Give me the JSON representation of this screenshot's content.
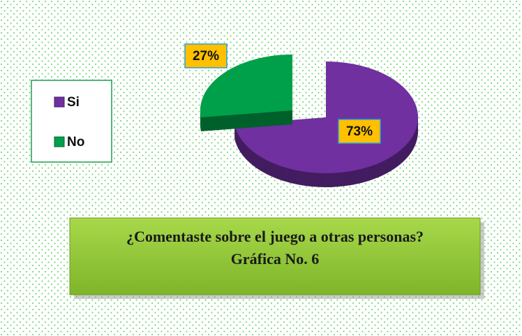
{
  "chart_data": {
    "type": "pie",
    "title": "¿Comentaste sobre el juego a otras personas?",
    "subtitle": "Gráfica No. 6",
    "categories": [
      "Si",
      "No"
    ],
    "values": [
      73,
      27
    ],
    "value_labels": [
      "73%",
      "27%"
    ],
    "colors": [
      "#7030a0",
      "#00a04a"
    ],
    "legend": "left"
  }
}
